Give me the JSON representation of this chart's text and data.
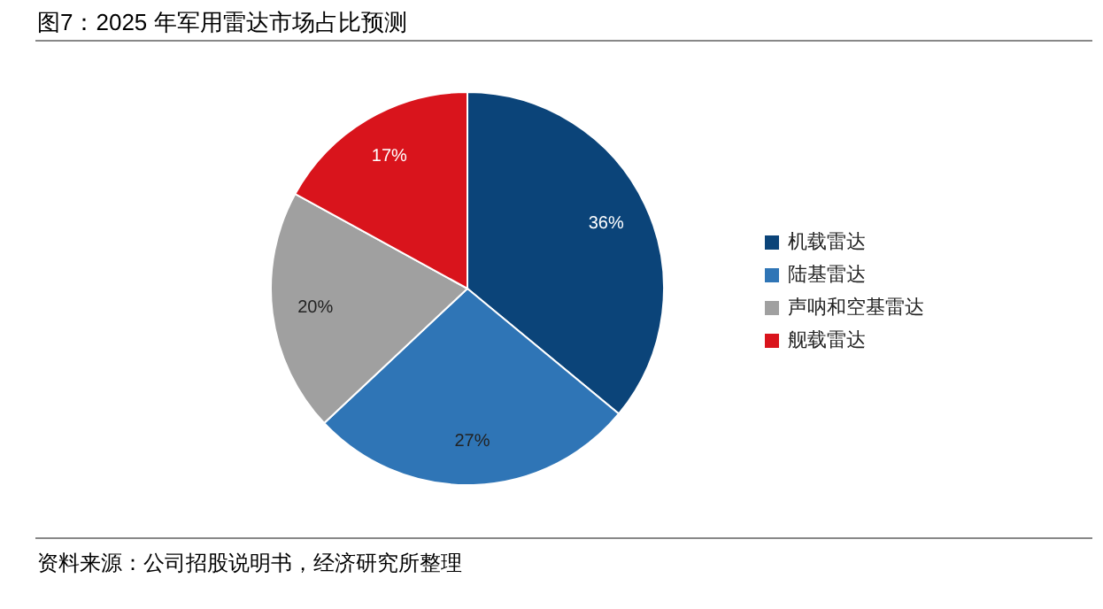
{
  "chart_data": {
    "type": "pie",
    "title": "图7：2025 年军用雷达市场占比预测",
    "categories": [
      "机载雷达",
      "陆基雷达",
      "声呐和空基雷达",
      "舰载雷达"
    ],
    "values": [
      36,
      27,
      20,
      17
    ],
    "colors": [
      "#0b4479",
      "#2f75b6",
      "#a0a0a0",
      "#d9141c"
    ],
    "value_labels": [
      "36%",
      "27%",
      "20%",
      "17%"
    ],
    "legend": "right",
    "annotations": [
      "资料来源：公司招股说明书，经济研究所整理"
    ]
  }
}
